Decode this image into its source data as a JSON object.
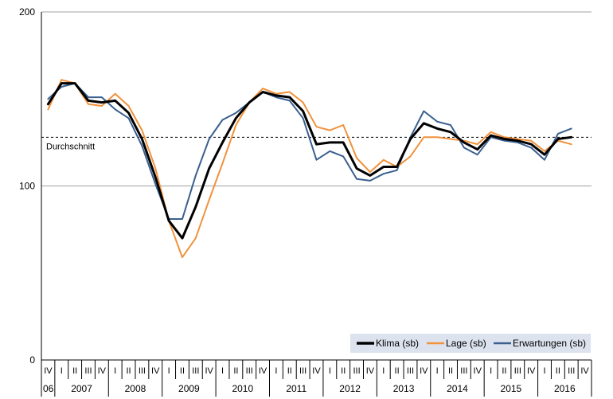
{
  "chart_data": {
    "type": "line",
    "title": "",
    "xlabel": "",
    "ylabel": "",
    "ylim": [
      0,
      200
    ],
    "yticks": [
      0,
      100,
      200
    ],
    "grid": true,
    "legend_position": "bottom-right",
    "quarter_labels": [
      "I",
      "II",
      "III",
      "IV"
    ],
    "year_labels": [
      {
        "label": "06",
        "quarters": 1
      },
      {
        "label": "2007",
        "quarters": 4
      },
      {
        "label": "2008",
        "quarters": 4
      },
      {
        "label": "2009",
        "quarters": 4
      },
      {
        "label": "2010",
        "quarters": 4
      },
      {
        "label": "2011",
        "quarters": 4
      },
      {
        "label": "2012",
        "quarters": 4
      },
      {
        "label": "2013",
        "quarters": 4
      },
      {
        "label": "2014",
        "quarters": 4
      },
      {
        "label": "2015",
        "quarters": 4
      },
      {
        "label": "2016",
        "quarters": 4
      }
    ],
    "x": [
      "2006-IV",
      "2007-I",
      "2007-II",
      "2007-III",
      "2007-IV",
      "2008-I",
      "2008-II",
      "2008-III",
      "2008-IV",
      "2009-I",
      "2009-II",
      "2009-III",
      "2009-IV",
      "2010-I",
      "2010-II",
      "2010-III",
      "2010-IV",
      "2011-I",
      "2011-II",
      "2011-III",
      "2011-IV",
      "2012-I",
      "2012-II",
      "2012-III",
      "2012-IV",
      "2013-I",
      "2013-II",
      "2013-III",
      "2013-IV",
      "2014-I",
      "2014-II",
      "2014-III",
      "2014-IV",
      "2015-I",
      "2015-II",
      "2015-III",
      "2015-IV",
      "2016-I",
      "2016-II",
      "2016-III",
      "2016-IV"
    ],
    "reference_line": {
      "label": "Durchschnitt",
      "value": 128
    },
    "series": [
      {
        "name": "Klima (sb)",
        "color": "#000000",
        "width": 3,
        "values": [
          147,
          159,
          159,
          149,
          148,
          149,
          142,
          127,
          105,
          80,
          70,
          88,
          110,
          125,
          139,
          148,
          154,
          152,
          151,
          143,
          124,
          125,
          125,
          110,
          106,
          111,
          111,
          127,
          136,
          133,
          131,
          125,
          121,
          129,
          127,
          126,
          124,
          118,
          127,
          128,
          null
        ]
      },
      {
        "name": "Lage (sb)",
        "color": "#F0923C",
        "width": 2,
        "values": [
          144,
          161,
          159,
          147,
          146,
          153,
          146,
          132,
          110,
          80,
          59,
          70,
          92,
          113,
          135,
          148,
          156,
          153,
          154,
          148,
          134,
          132,
          135,
          116,
          108,
          115,
          111,
          117,
          128,
          128,
          127,
          126,
          124,
          131,
          128,
          127,
          126,
          120,
          126,
          124,
          null
        ]
      },
      {
        "name": "Erwartungen (sb)",
        "color": "#3A5F8F",
        "width": 2,
        "values": [
          150,
          157,
          159,
          151,
          151,
          144,
          139,
          123,
          101,
          81,
          81,
          106,
          127,
          138,
          142,
          148,
          154,
          151,
          149,
          139,
          115,
          120,
          117,
          104,
          103,
          107,
          109,
          128,
          143,
          137,
          135,
          122,
          118,
          128,
          126,
          125,
          122,
          115,
          130,
          133,
          null
        ]
      }
    ]
  }
}
